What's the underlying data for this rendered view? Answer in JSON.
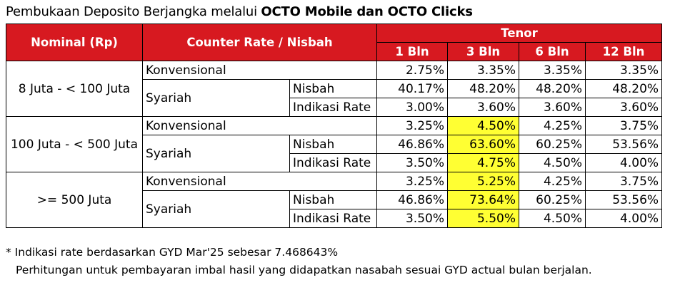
{
  "title": {
    "plain": "Pembukaan Deposito Berjangka melalui ",
    "bold": "OCTO Mobile dan OCTO Clicks"
  },
  "headers": {
    "nominal": "Nominal (Rp)",
    "counter_rate": "Counter Rate / Nisbah",
    "tenor": "Tenor",
    "tenors": [
      "1 Bln",
      "3 Bln",
      "6 Bln",
      "12 Bln"
    ]
  },
  "groups": [
    {
      "nominal": "8 Juta - < 100 Juta",
      "konvensional": {
        "label": "Konvensional",
        "values": [
          "2.75%",
          "3.35%",
          "3.35%",
          "3.35%"
        ]
      },
      "syariah": {
        "label": "Syariah",
        "nisbah": {
          "label": "Nisbah",
          "values": [
            "40.17%",
            "48.20%",
            "48.20%",
            "48.20%"
          ]
        },
        "indikasi": {
          "label": "Indikasi Rate",
          "values": [
            "3.00%",
            "3.60%",
            "3.60%",
            "3.60%"
          ]
        }
      }
    },
    {
      "nominal": "100 Juta - < 500 Juta",
      "konvensional": {
        "label": "Konvensional",
        "values": [
          "3.25%",
          "4.50%",
          "4.25%",
          "3.75%"
        ]
      },
      "syariah": {
        "label": "Syariah",
        "nisbah": {
          "label": "Nisbah",
          "values": [
            "46.86%",
            "63.60%",
            "60.25%",
            "53.56%"
          ]
        },
        "indikasi": {
          "label": "Indikasi Rate",
          "values": [
            "3.50%",
            "4.75%",
            "4.50%",
            "4.00%"
          ]
        }
      }
    },
    {
      "nominal": ">= 500 Juta",
      "konvensional": {
        "label": "Konvensional",
        "values": [
          "3.25%",
          "5.25%",
          "4.25%",
          "3.75%"
        ]
      },
      "syariah": {
        "label": "Syariah",
        "nisbah": {
          "label": "Nisbah",
          "values": [
            "46.86%",
            "73.64%",
            "60.25%",
            "53.56%"
          ]
        },
        "indikasi": {
          "label": "Indikasi Rate",
          "values": [
            "3.50%",
            "5.50%",
            "4.50%",
            "4.00%"
          ]
        }
      }
    }
  ],
  "highlight_color": "#ffff33",
  "header_color": "#d71920",
  "notes": [
    "* Indikasi rate berdasarkan GYD Mar'25 sebesar 7.468643%",
    "Perhitungan untuk pembayaran imbal hasil yang didapatkan nasabah sesuai GYD actual bulan berjalan."
  ]
}
